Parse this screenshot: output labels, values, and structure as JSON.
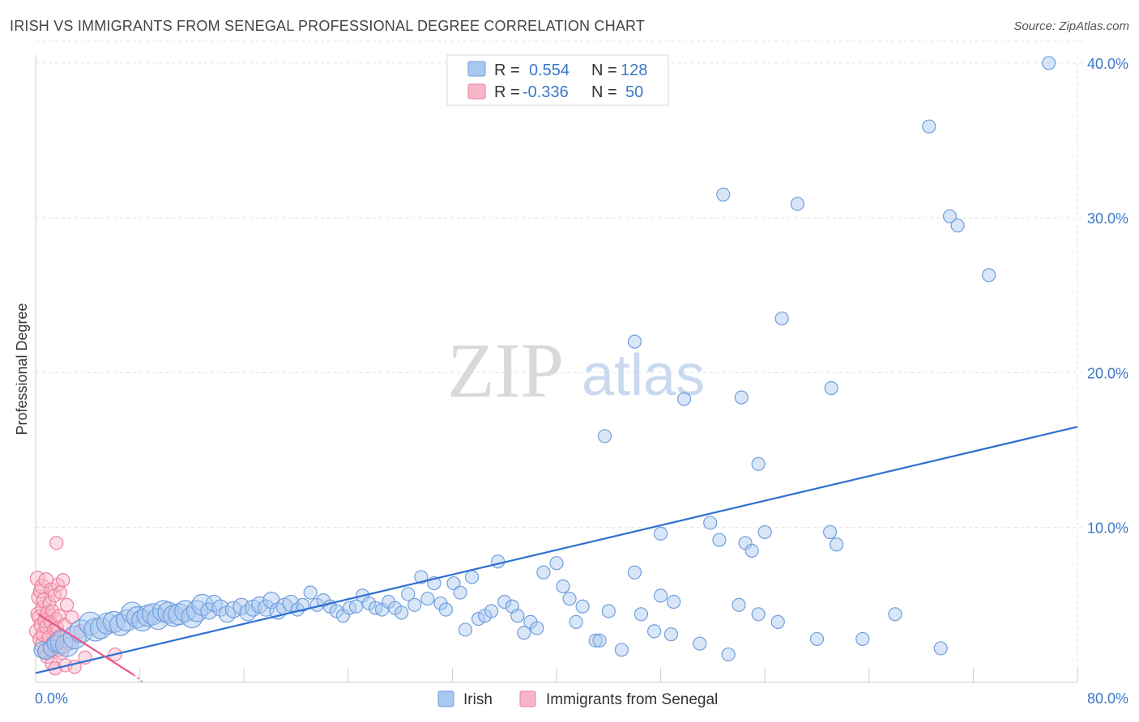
{
  "header": {
    "title": "IRISH VS IMMIGRANTS FROM SENEGAL PROFESSIONAL DEGREE CORRELATION CHART",
    "source": "Source: ZipAtlas.com"
  },
  "colors": {
    "irish_fill": "#a9c8f0",
    "irish_stroke": "#6f9fdc",
    "irish_line": "#2e6fd1",
    "senegal_fill": "#f6b6c8",
    "senegal_stroke": "#ee7fa0",
    "senegal_line": "#e8578a",
    "grid": "#e2e2e2",
    "axis_text": "#3b78c9"
  },
  "watermark": {
    "zip": "ZIP",
    "atlas": "atlas"
  },
  "legend": {
    "rows": [
      {
        "r_label": "R =",
        "r_value": "0.554",
        "n_label": "N =",
        "n_value": "128"
      },
      {
        "r_label": "R =",
        "r_value": "-0.336",
        "n_label": "N =",
        "n_value": "50"
      }
    ]
  },
  "bottom_legend": {
    "irish": "Irish",
    "senegal": "Immigrants from Senegal"
  },
  "chart_data": {
    "type": "scatter",
    "title": "IRISH VS IMMIGRANTS FROM SENEGAL PROFESSIONAL DEGREE CORRELATION CHART",
    "xlabel": "",
    "ylabel": "Professional Degree",
    "xlim": [
      0,
      80
    ],
    "ylim": [
      0,
      41.5
    ],
    "x_tick_labels": {
      "min": "0.0%",
      "max": "80.0%"
    },
    "y_ticks": [
      {
        "value": 10,
        "label": "10.0%"
      },
      {
        "value": 20,
        "label": "20.0%"
      },
      {
        "value": 30,
        "label": "30.0%"
      },
      {
        "value": 40,
        "label": "40.0%"
      }
    ],
    "series": [
      {
        "name": "Irish",
        "r": 0.554,
        "n": 128,
        "trendline": {
          "x": [
            0,
            80
          ],
          "y": [
            0.6,
            16.5
          ]
        },
        "points": [
          [
            0.5,
            2.1
          ],
          [
            0.8,
            2.0
          ],
          [
            1.2,
            2.2
          ],
          [
            1.5,
            2.5
          ],
          [
            2.0,
            2.6
          ],
          [
            2.4,
            2.4
          ],
          [
            3.0,
            2.9
          ],
          [
            3.5,
            3.3
          ],
          [
            4.2,
            3.8
          ],
          [
            4.6,
            3.4
          ],
          [
            5.0,
            3.5
          ],
          [
            5.5,
            3.8
          ],
          [
            6.0,
            3.9
          ],
          [
            6.5,
            3.7
          ],
          [
            7.0,
            4.0
          ],
          [
            7.4,
            4.5
          ],
          [
            7.8,
            4.2
          ],
          [
            8.2,
            4.0
          ],
          [
            8.6,
            4.3
          ],
          [
            9.0,
            4.4
          ],
          [
            9.4,
            4.1
          ],
          [
            9.8,
            4.6
          ],
          [
            10.2,
            4.5
          ],
          [
            10.6,
            4.3
          ],
          [
            11.0,
            4.4
          ],
          [
            11.5,
            4.6
          ],
          [
            12.0,
            4.2
          ],
          [
            12.4,
            4.6
          ],
          [
            12.8,
            5.0
          ],
          [
            13.3,
            4.6
          ],
          [
            13.7,
            5.1
          ],
          [
            14.2,
            4.8
          ],
          [
            14.7,
            4.4
          ],
          [
            15.2,
            4.7
          ],
          [
            15.8,
            4.9
          ],
          [
            16.3,
            4.5
          ],
          [
            16.7,
            4.8
          ],
          [
            17.2,
            5.0
          ],
          [
            17.7,
            4.8
          ],
          [
            18.1,
            5.3
          ],
          [
            18.6,
            4.6
          ],
          [
            19.1,
            4.9
          ],
          [
            19.6,
            5.1
          ],
          [
            20.1,
            4.7
          ],
          [
            20.5,
            5.0
          ],
          [
            21.1,
            5.8
          ],
          [
            21.6,
            5.0
          ],
          [
            22.1,
            5.3
          ],
          [
            22.6,
            4.9
          ],
          [
            23.1,
            4.6
          ],
          [
            23.6,
            4.3
          ],
          [
            24.1,
            4.8
          ],
          [
            24.6,
            4.9
          ],
          [
            25.1,
            5.6
          ],
          [
            25.6,
            5.1
          ],
          [
            26.1,
            4.8
          ],
          [
            26.6,
            4.7
          ],
          [
            27.1,
            5.2
          ],
          [
            27.6,
            4.8
          ],
          [
            28.1,
            4.5
          ],
          [
            28.6,
            5.7
          ],
          [
            29.1,
            5.0
          ],
          [
            29.6,
            6.8
          ],
          [
            30.1,
            5.4
          ],
          [
            30.6,
            6.4
          ],
          [
            31.1,
            5.1
          ],
          [
            31.5,
            4.7
          ],
          [
            32.1,
            6.4
          ],
          [
            32.6,
            5.8
          ],
          [
            33.0,
            3.4
          ],
          [
            33.5,
            6.8
          ],
          [
            34.0,
            4.1
          ],
          [
            34.5,
            4.3
          ],
          [
            35.0,
            4.6
          ],
          [
            35.5,
            7.8
          ],
          [
            36.0,
            5.2
          ],
          [
            36.6,
            4.9
          ],
          [
            37.0,
            4.3
          ],
          [
            37.5,
            3.2
          ],
          [
            38.0,
            3.9
          ],
          [
            38.5,
            3.5
          ],
          [
            39.0,
            7.1
          ],
          [
            40.0,
            7.7
          ],
          [
            40.5,
            6.2
          ],
          [
            41.0,
            5.4
          ],
          [
            41.5,
            3.9
          ],
          [
            42.0,
            4.9
          ],
          [
            43.0,
            2.7
          ],
          [
            43.3,
            2.7
          ],
          [
            44.0,
            4.6
          ],
          [
            45.0,
            2.1
          ],
          [
            46.0,
            7.1
          ],
          [
            46.5,
            4.4
          ],
          [
            47.5,
            3.3
          ],
          [
            48.0,
            5.6
          ],
          [
            48.8,
            3.1
          ],
          [
            49.0,
            5.2
          ],
          [
            51.0,
            2.5
          ],
          [
            51.8,
            10.3
          ],
          [
            52.5,
            9.2
          ],
          [
            53.2,
            1.8
          ],
          [
            54.0,
            5.0
          ],
          [
            54.5,
            9.0
          ],
          [
            55.0,
            8.5
          ],
          [
            55.5,
            4.4
          ],
          [
            56.0,
            9.7
          ],
          [
            57.0,
            3.9
          ],
          [
            60.0,
            2.8
          ],
          [
            61.0,
            9.7
          ],
          [
            61.5,
            8.9
          ],
          [
            63.5,
            2.8
          ],
          [
            66.0,
            4.4
          ],
          [
            69.5,
            2.2
          ],
          [
            48.0,
            9.6
          ],
          [
            43.7,
            15.9
          ],
          [
            46.0,
            22.0
          ],
          [
            49.8,
            18.3
          ],
          [
            52.8,
            31.5
          ],
          [
            54.2,
            18.4
          ],
          [
            55.5,
            14.1
          ],
          [
            57.3,
            23.5
          ],
          [
            58.5,
            30.9
          ],
          [
            61.1,
            19.0
          ],
          [
            68.6,
            35.9
          ],
          [
            70.2,
            30.1
          ],
          [
            70.8,
            29.5
          ],
          [
            73.2,
            26.3
          ],
          [
            77.8,
            40.0
          ]
        ]
      },
      {
        "name": "Immigrants from Senegal",
        "r": -0.336,
        "n": 50,
        "trendline": {
          "x": [
            0.2,
            7.5
          ],
          "y": [
            4.4,
            0.5
          ]
        },
        "trendline_dashed_extension": {
          "x": [
            7.5,
            8.2
          ],
          "y": [
            0.5,
            0.05
          ]
        },
        "points": [
          [
            0.1,
            3.3
          ],
          [
            0.15,
            6.7
          ],
          [
            0.2,
            4.4
          ],
          [
            0.25,
            5.5
          ],
          [
            0.3,
            4.2
          ],
          [
            0.35,
            2.8
          ],
          [
            0.4,
            5.9
          ],
          [
            0.45,
            3.7
          ],
          [
            0.5,
            2.4
          ],
          [
            0.5,
            6.2
          ],
          [
            0.55,
            4.8
          ],
          [
            0.6,
            3.1
          ],
          [
            0.65,
            5.3
          ],
          [
            0.7,
            2.0
          ],
          [
            0.75,
            4.0
          ],
          [
            0.8,
            6.6
          ],
          [
            0.85,
            3.6
          ],
          [
            0.9,
            1.7
          ],
          [
            0.95,
            4.5
          ],
          [
            1.0,
            2.9
          ],
          [
            1.05,
            5.1
          ],
          [
            1.1,
            2.3
          ],
          [
            1.15,
            3.9
          ],
          [
            1.2,
            6.0
          ],
          [
            1.25,
            1.2
          ],
          [
            1.3,
            4.6
          ],
          [
            1.35,
            2.6
          ],
          [
            1.4,
            3.4
          ],
          [
            1.45,
            5.6
          ],
          [
            1.5,
            0.9
          ],
          [
            1.55,
            4.1
          ],
          [
            1.6,
            2.8
          ],
          [
            1.6,
            9.0
          ],
          [
            1.65,
            3.5
          ],
          [
            1.7,
            6.3
          ],
          [
            1.75,
            2.1
          ],
          [
            1.8,
            4.3
          ],
          [
            1.85,
            3.0
          ],
          [
            1.9,
            5.8
          ],
          [
            2.0,
            1.9
          ],
          [
            2.1,
            6.6
          ],
          [
            2.2,
            3.7
          ],
          [
            2.3,
            1.1
          ],
          [
            2.4,
            5.0
          ],
          [
            2.6,
            2.5
          ],
          [
            2.8,
            4.2
          ],
          [
            3.0,
            1.0
          ],
          [
            3.4,
            3.3
          ],
          [
            3.8,
            1.6
          ],
          [
            6.1,
            1.8
          ]
        ]
      }
    ]
  }
}
